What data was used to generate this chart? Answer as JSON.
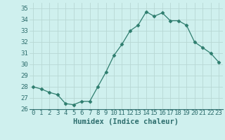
{
  "x": [
    0,
    1,
    2,
    3,
    4,
    5,
    6,
    7,
    8,
    9,
    10,
    11,
    12,
    13,
    14,
    15,
    16,
    17,
    18,
    19,
    20,
    21,
    22,
    23
  ],
  "y": [
    28.0,
    27.8,
    27.5,
    27.3,
    26.5,
    26.4,
    26.7,
    26.7,
    28.0,
    29.3,
    30.8,
    31.8,
    33.0,
    33.5,
    34.7,
    34.3,
    34.6,
    33.9,
    33.9,
    33.5,
    32.0,
    31.5,
    31.0,
    30.2
  ],
  "line_color": "#2e7d6e",
  "marker": "D",
  "marker_size": 2.5,
  "bg_color": "#cff0ee",
  "grid_color": "#b8d8d4",
  "xlabel": "Humidex (Indice chaleur)",
  "ylim": [
    26,
    35.5
  ],
  "xlim": [
    -0.5,
    23.5
  ],
  "yticks": [
    26,
    27,
    28,
    29,
    30,
    31,
    32,
    33,
    34,
    35
  ],
  "xticks": [
    0,
    1,
    2,
    3,
    4,
    5,
    6,
    7,
    8,
    9,
    10,
    11,
    12,
    13,
    14,
    15,
    16,
    17,
    18,
    19,
    20,
    21,
    22,
    23
  ],
  "xlabel_fontsize": 7.5,
  "tick_fontsize": 6.5,
  "text_color": "#2e6e6e"
}
